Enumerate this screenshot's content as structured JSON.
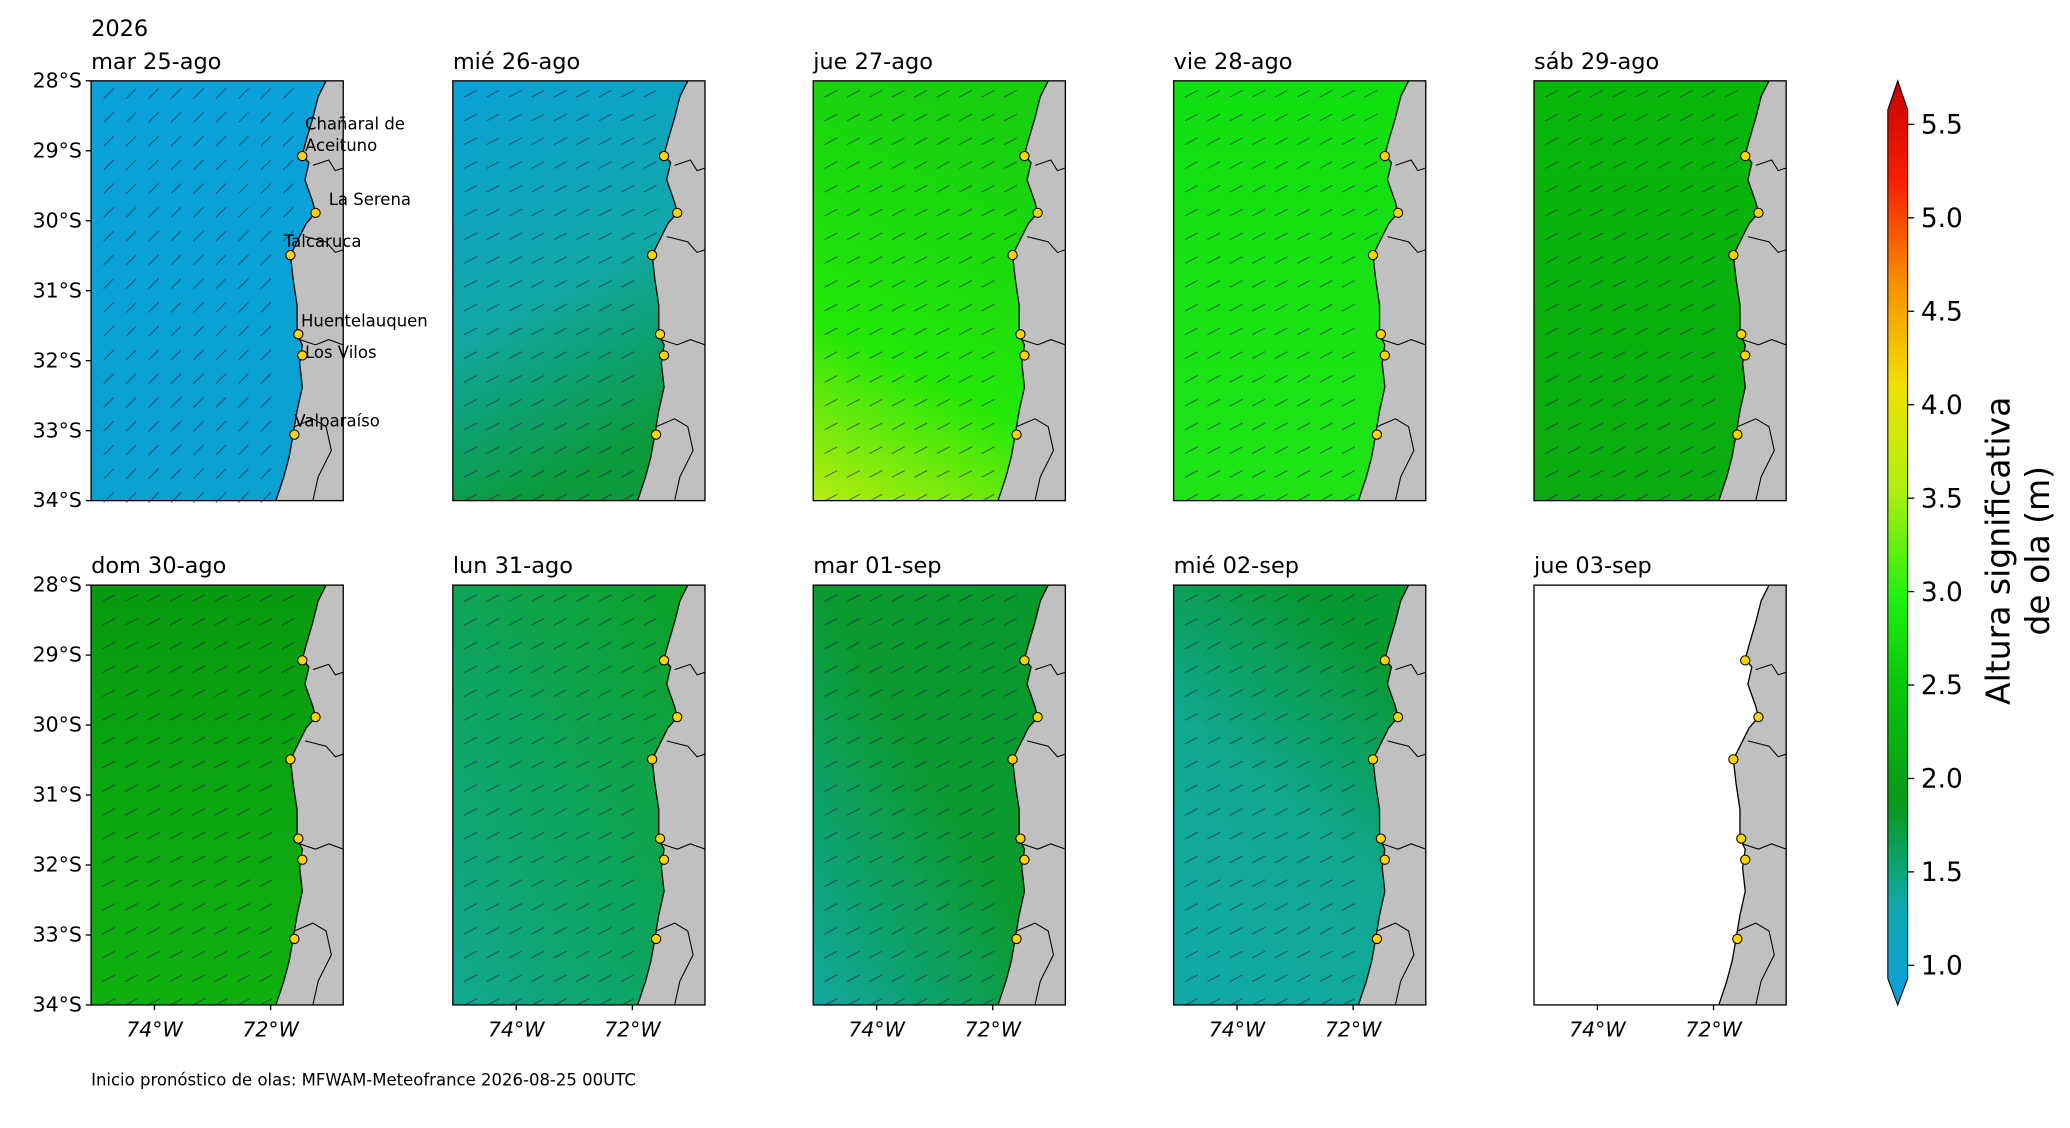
{
  "year": "2026",
  "panels": [
    {
      "title": "mar 25-ago"
    },
    {
      "title": "mié 26-ago"
    },
    {
      "title": "jue 27-ago"
    },
    {
      "title": "vie 28-ago"
    },
    {
      "title": "sáb 29-ago"
    },
    {
      "title": "dom 30-ago"
    },
    {
      "title": "lun 31-ago"
    },
    {
      "title": "mar 01-sep"
    },
    {
      "title": "mié 02-sep"
    },
    {
      "title": "jue 03-sep"
    }
  ],
  "lat_ticks": [
    "28°S",
    "29°S",
    "30°S",
    "31°S",
    "32°S",
    "33°S",
    "34°S"
  ],
  "lon_ticks": [
    "74°W",
    "72°W"
  ],
  "places": [
    "Chañaral de\nAceituno",
    "La Serena",
    "Talcaruca",
    "Huentelauquen",
    "Los Vilos",
    "Valparaíso"
  ],
  "colorbar": {
    "label": [
      "Altura significativa",
      "de ola (m)"
    ],
    "ticks": [
      "1.0",
      "1.5",
      "2.0",
      "2.5",
      "3.0",
      "3.5",
      "4.0",
      "4.5",
      "5.0",
      "5.5"
    ]
  },
  "footer": "Inicio pronóstico de olas: MFWAM-Meteofrance 2026-08-25 00UTC"
}
